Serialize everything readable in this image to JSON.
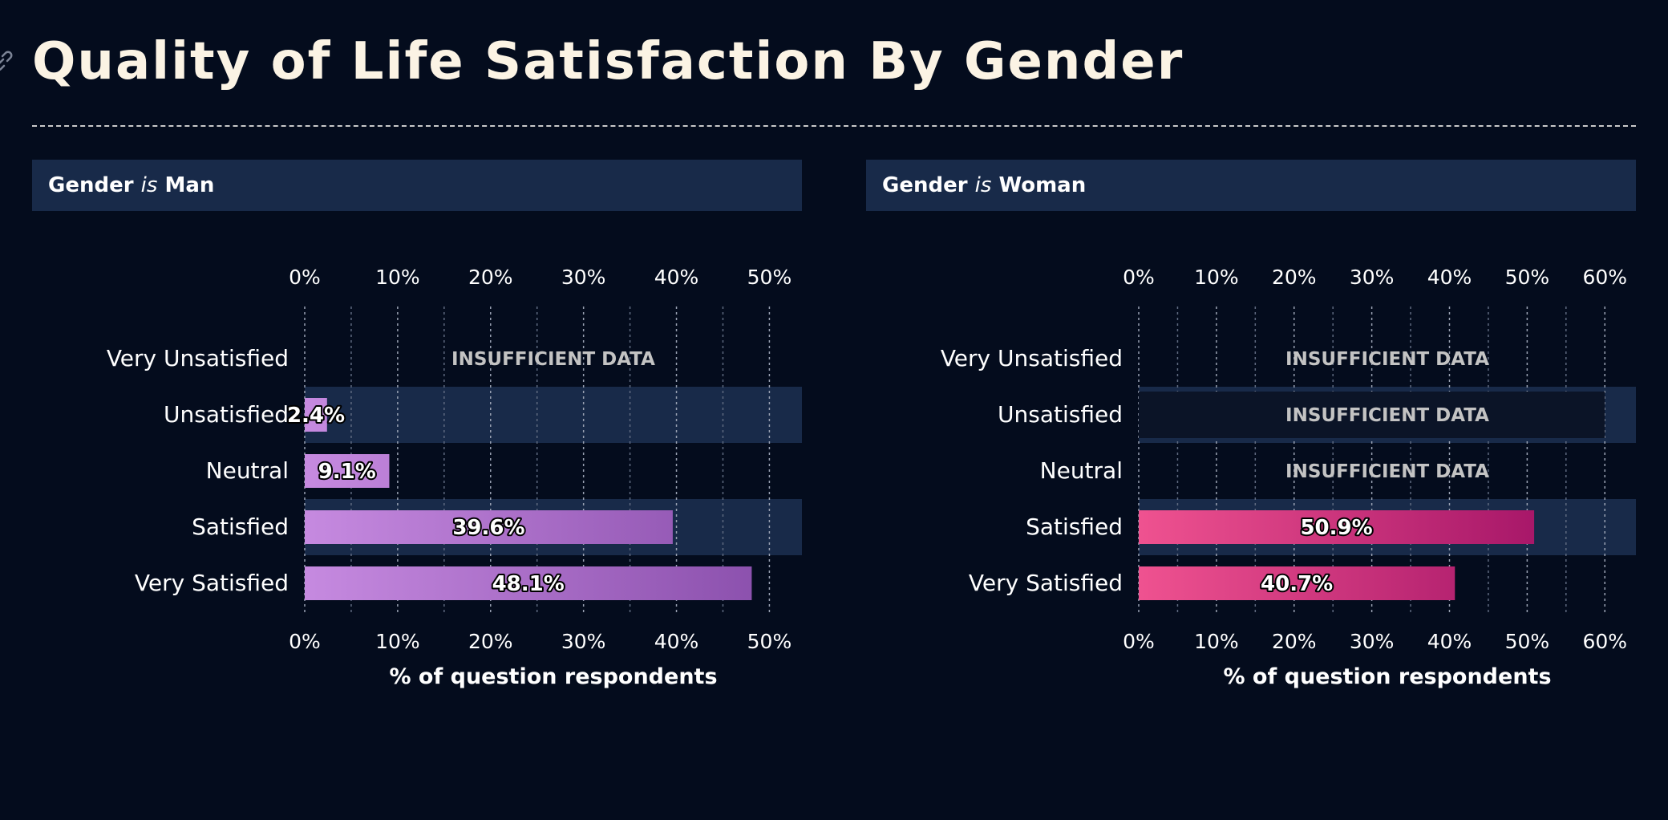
{
  "title": "Quality of Life Satisfaction By Gender",
  "facet_label_connector": "is",
  "colors": {
    "background": "#040c1d",
    "header_bg": "#182a49",
    "band": "#182a49",
    "man_gradient": [
      "#c68ae0",
      "#8a4fac"
    ],
    "woman_gradient": [
      "#ef5290",
      "#9b0d62"
    ]
  },
  "chart_data": [
    {
      "type": "bar",
      "orientation": "horizontal",
      "facet_field": "Gender",
      "facet_value": "Man",
      "categories": [
        "Very Unsatisfied",
        "Unsatisfied",
        "Neutral",
        "Satisfied",
        "Very Satisfied"
      ],
      "values": [
        null,
        2.4,
        9.1,
        39.6,
        48.1
      ],
      "value_labels": [
        "INSUFFICIENT DATA",
        "2.4%",
        "9.1%",
        "39.6%",
        "48.1%"
      ],
      "xlabel": "% of question respondents",
      "xlim": [
        0,
        53.5
      ],
      "xticks": [
        0,
        10,
        20,
        30,
        40,
        50
      ],
      "xtick_labels": [
        "0%",
        "10%",
        "20%",
        "30%",
        "40%",
        "50%"
      ],
      "grid": true,
      "insufficient_label": "INSUFFICIENT DATA",
      "palette": "man_gradient"
    },
    {
      "type": "bar",
      "orientation": "horizontal",
      "facet_field": "Gender",
      "facet_value": "Woman",
      "categories": [
        "Very Unsatisfied",
        "Unsatisfied",
        "Neutral",
        "Satisfied",
        "Very Satisfied"
      ],
      "values": [
        null,
        null,
        null,
        50.9,
        40.7
      ],
      "value_labels": [
        "INSUFFICIENT DATA",
        "INSUFFICIENT DATA",
        "INSUFFICIENT DATA",
        "50.9%",
        "40.7%"
      ],
      "xlabel": "% of question respondents",
      "xlim": [
        0,
        64
      ],
      "xticks": [
        0,
        10,
        20,
        30,
        40,
        50,
        60
      ],
      "xtick_labels": [
        "0%",
        "10%",
        "20%",
        "30%",
        "40%",
        "50%",
        "60%"
      ],
      "grid": true,
      "insufficient_label": "INSUFFICIENT DATA",
      "palette": "woman_gradient"
    }
  ]
}
